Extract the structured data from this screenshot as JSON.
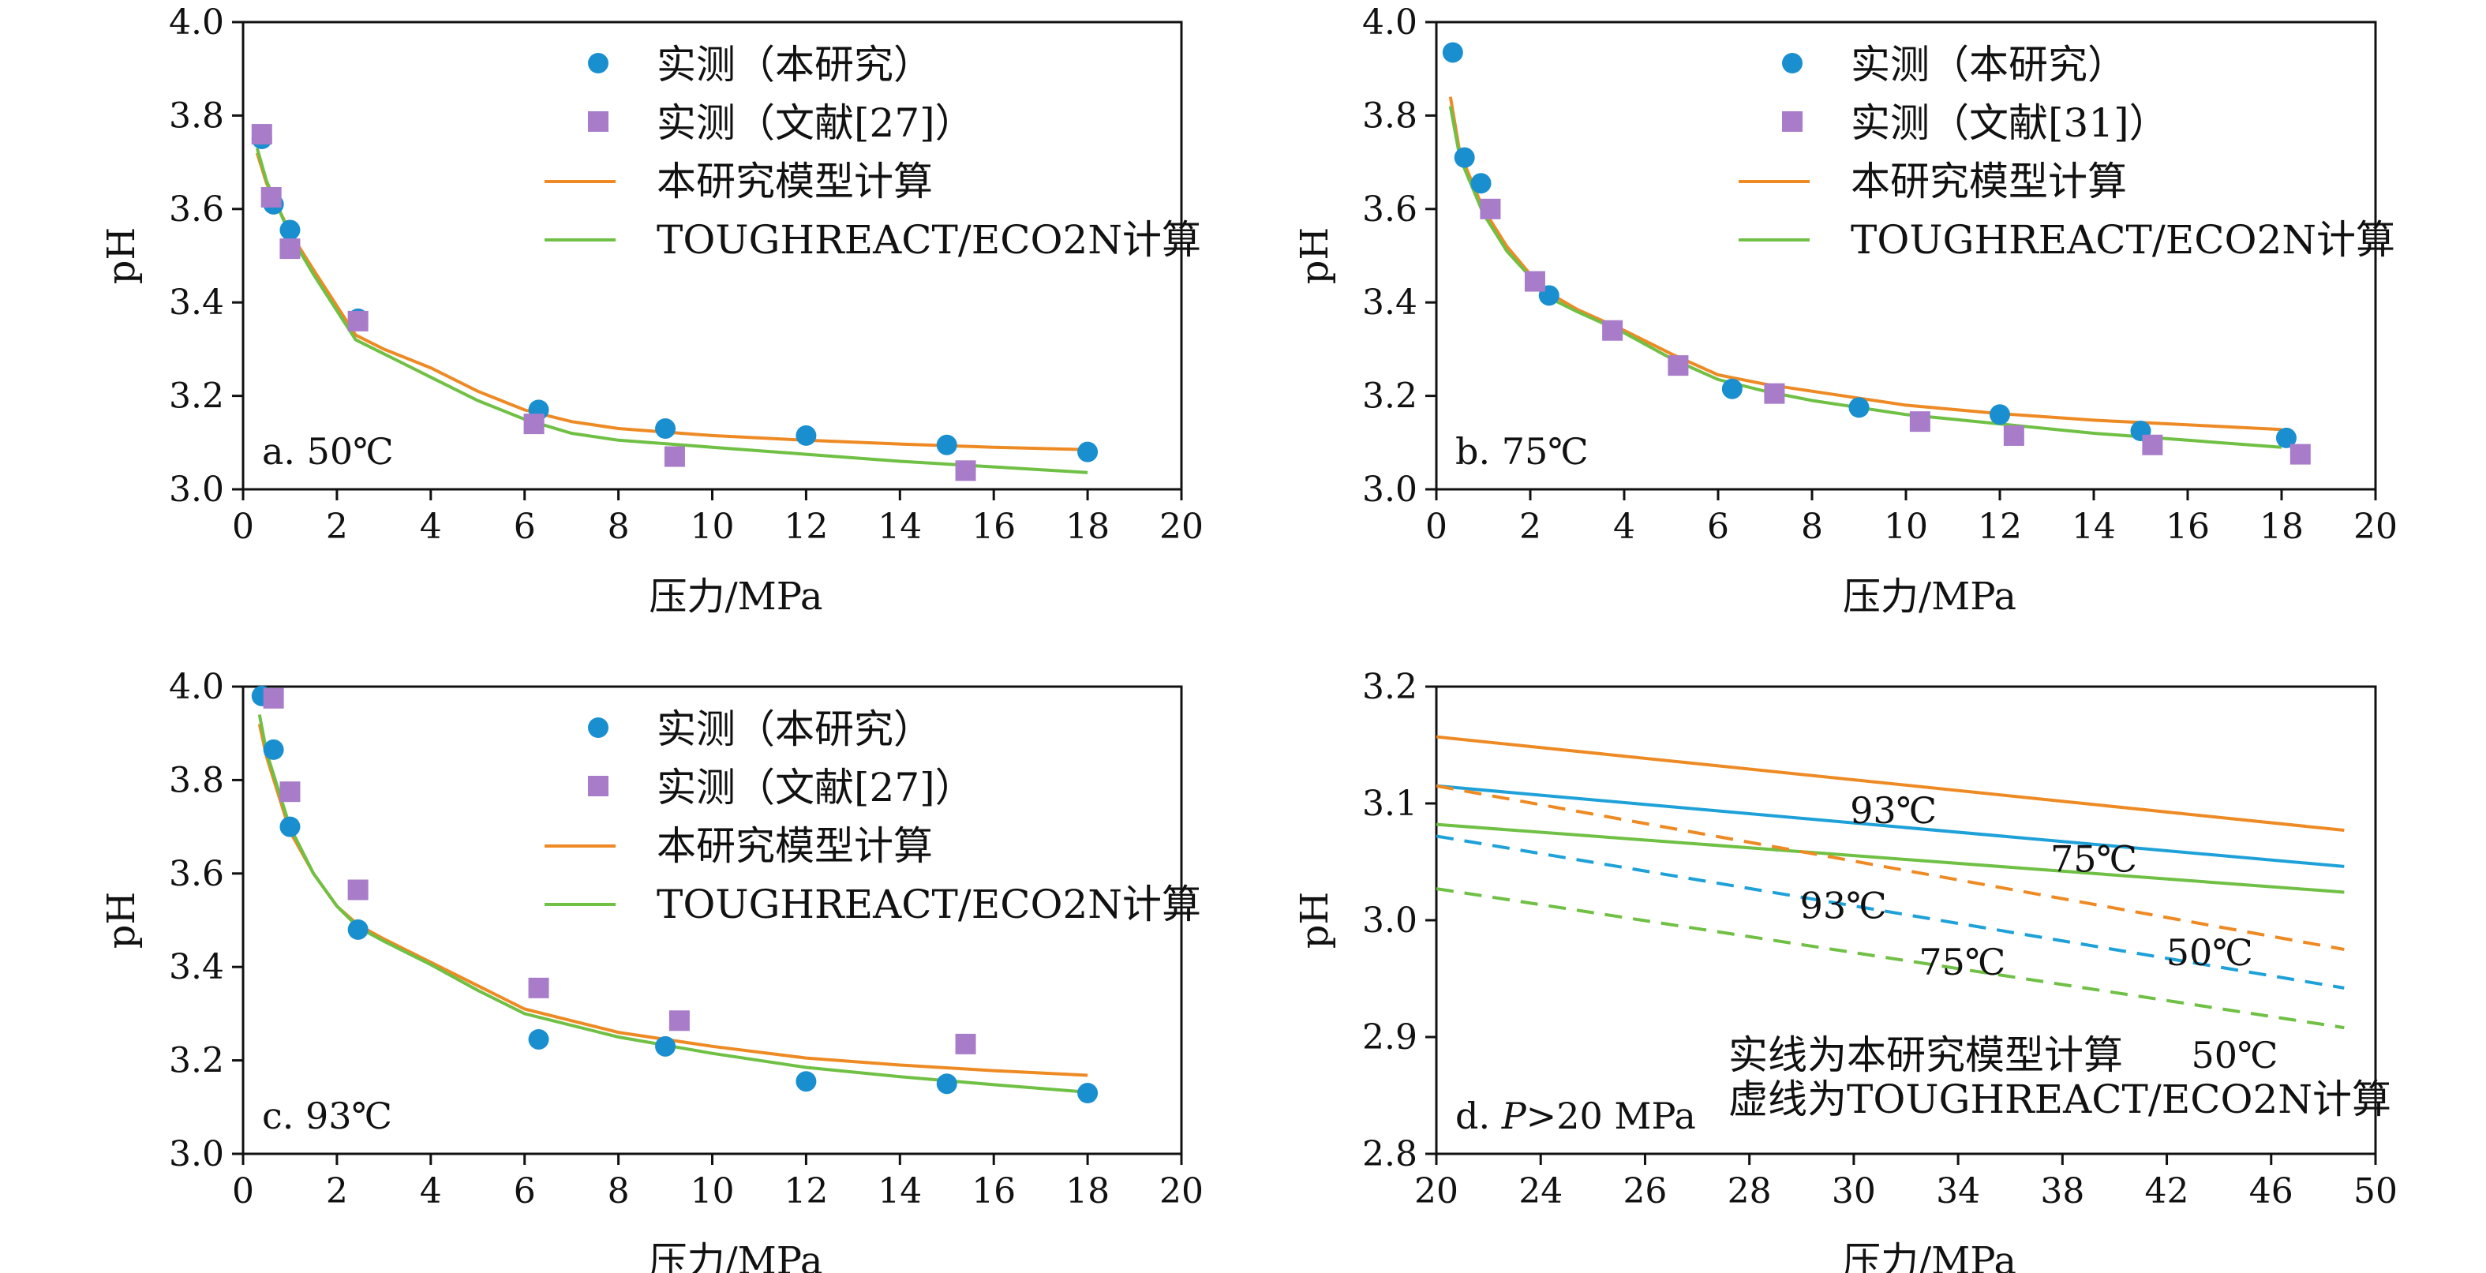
{
  "figure": {
    "colors": {
      "measured_this_study": "#1a8fd0",
      "measured_literature": "#a87cc9",
      "model_this_study": "#ee8a24",
      "toughreact": "#6fc044",
      "curve_93": "#ee8a24",
      "curve_75": "#1ea1d8",
      "curve_50": "#6fc044",
      "axis": "#111111"
    }
  },
  "chart_data": [
    {
      "id": "a",
      "type": "scatter",
      "panel_label": "a. 50℃",
      "xlabel": "压力/MPa",
      "ylabel": "pH",
      "xlim": [
        0,
        20
      ],
      "ylim": [
        3.0,
        4.0
      ],
      "xticks": [
        "0",
        "2",
        "4",
        "6",
        "8",
        "10",
        "12",
        "14",
        "16",
        "18",
        "20"
      ],
      "yticks": [
        "3.0",
        "3.2",
        "3.4",
        "3.6",
        "3.8",
        "4.0"
      ],
      "legend": [
        "实测（本研究）",
        "实测（文献[27]）",
        "本研究模型计算",
        "TOUGHREACT/ECO2N计算"
      ],
      "series": [
        {
          "name": "实测（本研究）",
          "marker": "circle",
          "color_key": "measured_this_study",
          "x": [
            0.4,
            0.65,
            1.0,
            2.45,
            6.3,
            9.0,
            12.0,
            15.0,
            18.0
          ],
          "y": [
            3.75,
            3.61,
            3.555,
            3.365,
            3.17,
            3.13,
            3.115,
            3.095,
            3.08
          ]
        },
        {
          "name": "实测（文献[27]）",
          "marker": "square",
          "color_key": "measured_literature",
          "x": [
            0.4,
            0.6,
            1.0,
            2.45,
            6.2,
            9.2,
            15.4
          ],
          "y": [
            3.76,
            3.625,
            3.515,
            3.36,
            3.14,
            3.07,
            3.04
          ]
        },
        {
          "name": "本研究模型计算",
          "marker": "line",
          "color_key": "model_this_study",
          "x": [
            0.3,
            0.5,
            1.0,
            1.5,
            2.4,
            3.0,
            4.0,
            5.0,
            6.0,
            7.0,
            8.0,
            10.0,
            12.0,
            14.0,
            16.0,
            18.0
          ],
          "y": [
            3.72,
            3.655,
            3.55,
            3.47,
            3.33,
            3.3,
            3.26,
            3.21,
            3.17,
            3.145,
            3.13,
            3.115,
            3.105,
            3.097,
            3.09,
            3.085
          ]
        },
        {
          "name": "TOUGHREACT/ECO2N计算",
          "marker": "line",
          "color_key": "toughreact",
          "x": [
            0.3,
            0.5,
            1.0,
            1.5,
            2.4,
            3.0,
            4.0,
            5.0,
            6.0,
            7.0,
            8.0,
            10.0,
            12.0,
            14.0,
            16.0,
            18.0
          ],
          "y": [
            3.73,
            3.66,
            3.545,
            3.46,
            3.32,
            3.29,
            3.24,
            3.19,
            3.15,
            3.12,
            3.105,
            3.09,
            3.075,
            3.06,
            3.048,
            3.036
          ]
        }
      ]
    },
    {
      "id": "b",
      "type": "scatter",
      "panel_label": "b. 75℃",
      "xlabel": "压力/MPa",
      "ylabel": "pH",
      "xlim": [
        0,
        20
      ],
      "ylim": [
        3.0,
        4.0
      ],
      "xticks": [
        "0",
        "2",
        "4",
        "6",
        "8",
        "10",
        "12",
        "14",
        "16",
        "18",
        "20"
      ],
      "yticks": [
        "3.0",
        "3.2",
        "3.4",
        "3.6",
        "3.8",
        "4.0"
      ],
      "legend": [
        "实测（本研究）",
        "实测（文献[31]）",
        "本研究模型计算",
        "TOUGHREACT/ECO2N计算"
      ],
      "series": [
        {
          "name": "实测（本研究）",
          "marker": "circle",
          "color_key": "measured_this_study",
          "x": [
            0.35,
            0.6,
            0.95,
            2.4,
            6.3,
            9.0,
            12.0,
            15.0,
            18.1
          ],
          "y": [
            3.935,
            3.71,
            3.655,
            3.415,
            3.215,
            3.175,
            3.16,
            3.125,
            3.11
          ]
        },
        {
          "name": "实测（文献[31]）",
          "marker": "square",
          "color_key": "measured_literature",
          "x": [
            1.15,
            2.1,
            3.75,
            5.15,
            7.2,
            10.3,
            12.3,
            15.25,
            18.4
          ],
          "y": [
            3.6,
            3.445,
            3.34,
            3.265,
            3.205,
            3.145,
            3.115,
            3.095,
            3.075
          ]
        },
        {
          "name": "本研究模型计算",
          "marker": "line",
          "color_key": "model_this_study",
          "x": [
            0.3,
            0.5,
            1.0,
            1.5,
            2.0,
            2.4,
            3.0,
            4.0,
            5.0,
            6.0,
            7.0,
            8.0,
            10.0,
            12.0,
            14.0,
            16.0,
            18.0
          ],
          "y": [
            3.84,
            3.72,
            3.6,
            3.52,
            3.46,
            3.42,
            3.385,
            3.34,
            3.29,
            3.245,
            3.225,
            3.21,
            3.18,
            3.162,
            3.148,
            3.138,
            3.128
          ]
        },
        {
          "name": "TOUGHREACT/ECO2N计算",
          "marker": "line",
          "color_key": "toughreact",
          "x": [
            0.3,
            0.5,
            1.0,
            1.5,
            2.0,
            2.4,
            3.0,
            4.0,
            5.0,
            6.0,
            7.0,
            8.0,
            10.0,
            12.0,
            14.0,
            16.0,
            18.0
          ],
          "y": [
            3.82,
            3.71,
            3.59,
            3.51,
            3.455,
            3.41,
            3.38,
            3.335,
            3.28,
            3.235,
            3.21,
            3.19,
            3.16,
            3.14,
            3.12,
            3.105,
            3.09
          ]
        }
      ]
    },
    {
      "id": "c",
      "type": "scatter",
      "panel_label": "c. 93℃",
      "xlabel": "压力/MPa",
      "ylabel": "pH",
      "xlim": [
        0,
        20
      ],
      "ylim": [
        3.0,
        4.0
      ],
      "xticks": [
        "0",
        "2",
        "4",
        "6",
        "8",
        "10",
        "12",
        "14",
        "16",
        "18",
        "20"
      ],
      "yticks": [
        "3.0",
        "3.2",
        "3.4",
        "3.6",
        "3.8",
        "4.0"
      ],
      "legend": [
        "实测（本研究）",
        "实测（文献[27]）",
        "本研究模型计算",
        "TOUGHREACT/ECO2N计算"
      ],
      "series": [
        {
          "name": "实测（本研究）",
          "marker": "circle",
          "color_key": "measured_this_study",
          "x": [
            0.4,
            0.65,
            1.0,
            2.45,
            6.3,
            9.0,
            12.0,
            15.0,
            18.0
          ],
          "y": [
            3.98,
            3.865,
            3.7,
            3.48,
            3.245,
            3.23,
            3.155,
            3.15,
            3.13
          ]
        },
        {
          "name": "实测（文献[27]）",
          "marker": "square",
          "color_key": "measured_literature",
          "x": [
            0.65,
            1.0,
            2.45,
            6.3,
            9.3,
            15.4
          ],
          "y": [
            3.975,
            3.775,
            3.565,
            3.355,
            3.285,
            3.235
          ]
        },
        {
          "name": "本研究模型计算",
          "marker": "line",
          "color_key": "model_this_study",
          "x": [
            0.35,
            0.5,
            1.0,
            1.5,
            2.0,
            2.45,
            3.0,
            4.0,
            5.0,
            6.0,
            7.0,
            8.0,
            10.0,
            12.0,
            14.0,
            16.0,
            18.0
          ],
          "y": [
            3.92,
            3.85,
            3.69,
            3.6,
            3.53,
            3.49,
            3.46,
            3.41,
            3.36,
            3.31,
            3.285,
            3.26,
            3.23,
            3.205,
            3.19,
            3.178,
            3.168
          ]
        },
        {
          "name": "TOUGHREACT/ECO2N计算",
          "marker": "line",
          "color_key": "toughreact",
          "x": [
            0.35,
            0.5,
            1.0,
            1.5,
            2.0,
            2.45,
            3.0,
            4.0,
            5.0,
            6.0,
            7.0,
            8.0,
            10.0,
            12.0,
            14.0,
            16.0,
            18.0
          ],
          "y": [
            3.94,
            3.86,
            3.7,
            3.6,
            3.53,
            3.485,
            3.455,
            3.405,
            3.35,
            3.3,
            3.275,
            3.25,
            3.215,
            3.185,
            3.165,
            3.148,
            3.132
          ]
        }
      ]
    },
    {
      "id": "d",
      "type": "line",
      "panel_label_prefix": "d. ",
      "panel_label_italic": "P",
      "panel_label_suffix": ">20 MPa",
      "xlabel": "压力/MPa",
      "ylabel": "pH",
      "xlim": [
        20,
        50
      ],
      "ylim": [
        2.8,
        3.2
      ],
      "xticks": [
        "20",
        "24",
        "26",
        "28",
        "30",
        "34",
        "38",
        "42",
        "46",
        "50"
      ],
      "yticks": [
        "2.8",
        "2.9",
        "3.0",
        "3.1",
        "3.2"
      ],
      "note_solid": "实线为本研究模型计算",
      "note_dashed": "虚线为TOUGHREACT/ECO2N计算",
      "series": [
        {
          "label": "93℃",
          "style": "solid",
          "color_key": "curve_93",
          "x": [
            20,
            49
          ],
          "y": [
            3.157,
            3.077
          ]
        },
        {
          "label": "75℃",
          "style": "solid",
          "color_key": "curve_75",
          "x": [
            20,
            49
          ],
          "y": [
            3.115,
            3.046
          ]
        },
        {
          "label": "50℃",
          "style": "solid",
          "color_key": "curve_50",
          "x": [
            20,
            49
          ],
          "y": [
            3.082,
            3.024
          ]
        },
        {
          "label": "93℃",
          "style": "dashed",
          "color_key": "curve_93",
          "x": [
            20,
            49
          ],
          "y": [
            3.115,
            2.975
          ]
        },
        {
          "label": "75℃",
          "style": "dashed",
          "color_key": "curve_75",
          "x": [
            20,
            49
          ],
          "y": [
            3.072,
            2.942
          ]
        },
        {
          "label": "50℃",
          "style": "dashed",
          "color_key": "curve_50",
          "x": [
            20,
            49
          ],
          "y": [
            3.027,
            2.908
          ]
        }
      ]
    }
  ]
}
